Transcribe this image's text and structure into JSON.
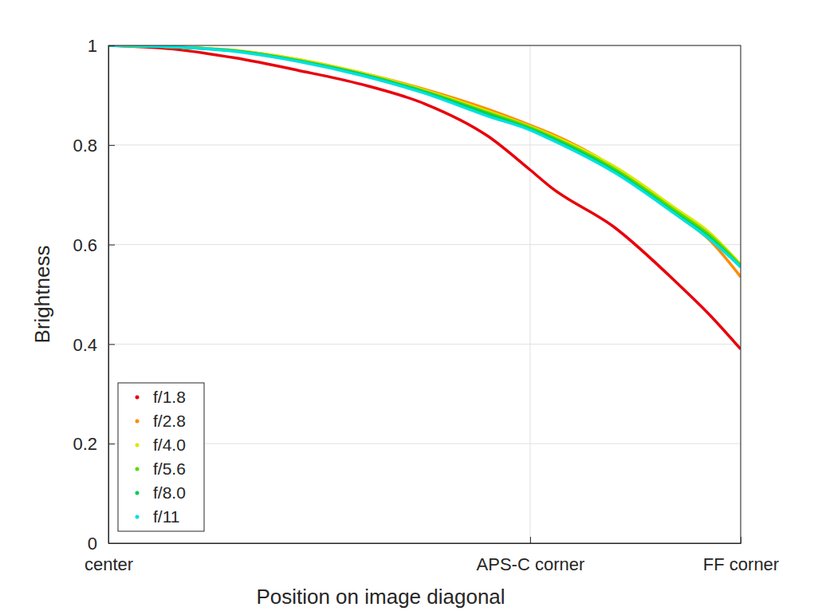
{
  "chart_data": {
    "type": "line",
    "xlabel": "Position on image diagonal",
    "ylabel": "Brightness",
    "x": [
      0,
      0.1,
      0.2,
      0.3,
      0.4,
      0.5,
      0.6,
      0.667,
      0.7,
      0.8,
      0.9,
      0.95,
      1.0
    ],
    "series": [
      {
        "name": "f/1.8",
        "color": "#e8000b",
        "values": [
          1.0,
          0.993,
          0.975,
          0.95,
          0.922,
          0.883,
          0.818,
          0.75,
          0.715,
          0.635,
          0.522,
          0.46,
          0.39
        ]
      },
      {
        "name": "f/2.8",
        "color": "#ff8c00",
        "values": [
          1.0,
          0.997,
          0.99,
          0.972,
          0.945,
          0.912,
          0.872,
          0.84,
          0.823,
          0.755,
          0.659,
          0.61,
          0.535
        ]
      },
      {
        "name": "f/4.0",
        "color": "#dde600",
        "values": [
          1.0,
          0.997,
          0.99,
          0.972,
          0.945,
          0.91,
          0.868,
          0.837,
          0.82,
          0.757,
          0.67,
          0.625,
          0.56
        ]
      },
      {
        "name": "f/5.6",
        "color": "#55dd00",
        "values": [
          1.0,
          0.997,
          0.989,
          0.97,
          0.943,
          0.908,
          0.865,
          0.835,
          0.817,
          0.752,
          0.665,
          0.62,
          0.558
        ]
      },
      {
        "name": "f/8.0",
        "color": "#00cc55",
        "values": [
          1.0,
          0.997,
          0.989,
          0.969,
          0.942,
          0.906,
          0.862,
          0.832,
          0.814,
          0.748,
          0.66,
          0.615,
          0.555
        ]
      },
      {
        "name": "f/11",
        "color": "#00e0e0",
        "values": [
          1.0,
          0.997,
          0.988,
          0.968,
          0.94,
          0.904,
          0.858,
          0.83,
          0.811,
          0.745,
          0.658,
          0.612,
          0.555
        ]
      }
    ],
    "xlim": [
      0,
      1
    ],
    "xticks": [
      {
        "value": 0,
        "label": "center"
      },
      {
        "value": 0.667,
        "label": "APS-C corner"
      },
      {
        "value": 1,
        "label": "FF corner"
      }
    ],
    "ylim": [
      0,
      1
    ],
    "yticks": [
      0,
      0.2,
      0.4,
      0.6,
      0.8,
      1
    ],
    "grid": true,
    "legend": "lower left"
  }
}
